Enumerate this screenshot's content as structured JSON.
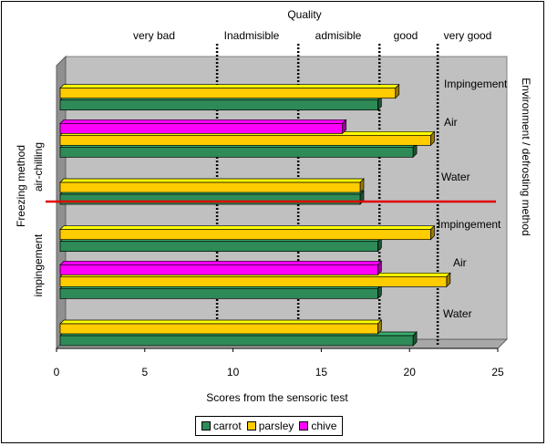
{
  "chart_data": {
    "type": "bar",
    "orientation": "horizontal",
    "title": "Quality",
    "xlabel": "Scores from the sensoric test",
    "xlim": [
      0,
      25
    ],
    "xticks": [
      "0",
      "5",
      "10",
      "15",
      "20",
      "25"
    ],
    "left_axis_title": "Freezing method",
    "right_axis_title": "Environment / defrosting method",
    "freezing_groups": [
      {
        "name": "air-chilling"
      },
      {
        "name": "impingement"
      }
    ],
    "categories": [
      "Impingement",
      "Air",
      "Water",
      "Impingement",
      "Air",
      "Water"
    ],
    "series": [
      {
        "name": "carrot",
        "color": "#2e8b57",
        "values": [
          18.2,
          20.2,
          17.2,
          18.2,
          18.2,
          20.2
        ]
      },
      {
        "name": "parsley",
        "color": "#ffcc00",
        "values": [
          19.2,
          21.2,
          17.2,
          21.2,
          22.1,
          18.2
        ]
      },
      {
        "name": "chive",
        "color": "#ff00ff",
        "values": [
          null,
          16.2,
          null,
          null,
          18.2,
          null
        ]
      }
    ],
    "quality_zones": [
      "very bad",
      "Inadmisible",
      "admisible",
      "good",
      "very good"
    ],
    "quality_thresholds": [
      9.2,
      13.8,
      18.4,
      21.7
    ],
    "separator_color": "#e00000",
    "legend": [
      "carrot",
      "parsley",
      "chive"
    ],
    "legend_position": "bottom"
  }
}
